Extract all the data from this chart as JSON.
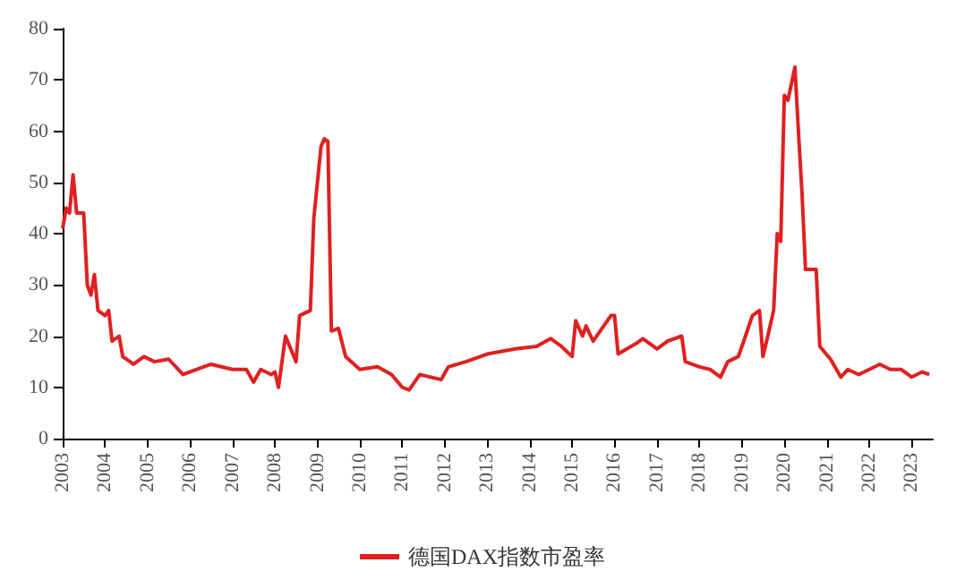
{
  "chart_data": {
    "type": "line",
    "legend": "bottom",
    "grid": false,
    "marker": "none",
    "line_style": "solid",
    "ylim": [
      0,
      80
    ],
    "yticks": [
      0,
      10,
      20,
      30,
      40,
      50,
      60,
      70,
      80
    ],
    "xlim": [
      "2003-01",
      "2023-07"
    ],
    "xticks": [
      "2003",
      "2004",
      "2005",
      "2006",
      "2007",
      "2008",
      "2009",
      "2010",
      "2011",
      "2012",
      "2013",
      "2014",
      "2015",
      "2016",
      "2017",
      "2018",
      "2019",
      "2020",
      "2021",
      "2022",
      "2023"
    ],
    "x": [
      "2003-01",
      "2003-02",
      "2003-03",
      "2003-04",
      "2003-05",
      "2003-07",
      "2003-08",
      "2003-09",
      "2003-10",
      "2003-11",
      "2004-01",
      "2004-02",
      "2004-03",
      "2004-05",
      "2004-06",
      "2004-09",
      "2004-12",
      "2005-03",
      "2005-07",
      "2005-11",
      "2006-03",
      "2006-07",
      "2007-01",
      "2007-05",
      "2007-07",
      "2007-09",
      "2007-12",
      "2008-01",
      "2008-02",
      "2008-04",
      "2008-07",
      "2008-08",
      "2008-11",
      "2008-12",
      "2009-01",
      "2009-02",
      "2009-03",
      "2009-04",
      "2009-05",
      "2009-07",
      "2009-09",
      "2010-01",
      "2010-06",
      "2010-10",
      "2011-01",
      "2011-03",
      "2011-06",
      "2011-12",
      "2012-02",
      "2012-07",
      "2013-01",
      "2013-09",
      "2014-03",
      "2014-07",
      "2014-10",
      "2015-01",
      "2015-02",
      "2015-04",
      "2015-05",
      "2015-07",
      "2015-12",
      "2016-01",
      "2016-02",
      "2016-07",
      "2016-09",
      "2017-01",
      "2017-04",
      "2017-08",
      "2017-09",
      "2018-01",
      "2018-04",
      "2018-07",
      "2018-09",
      "2018-12",
      "2019-02",
      "2019-04",
      "2019-06",
      "2019-07",
      "2019-08",
      "2019-10",
      "2019-11",
      "2019-12",
      "2020-01",
      "2020-02",
      "2020-04",
      "2020-05",
      "2020-06",
      "2020-07",
      "2020-10",
      "2020-11",
      "2021-02",
      "2021-05",
      "2021-07",
      "2021-10",
      "2022-01",
      "2022-04",
      "2022-07",
      "2022-10",
      "2023-01",
      "2023-04",
      "2023-06"
    ],
    "series": [
      {
        "name": "德国DAX指数市盈率",
        "color": "#e02020",
        "values": [
          41,
          45,
          44,
          51.5,
          44,
          44,
          30,
          28,
          32,
          25,
          24,
          25,
          19,
          20,
          16,
          14.5,
          16,
          15,
          15.5,
          12.5,
          13.5,
          14.5,
          13.5,
          13.5,
          11,
          13.5,
          12.5,
          13,
          10,
          20,
          15,
          24,
          25,
          43,
          50,
          57,
          58.5,
          58,
          21,
          21.5,
          16,
          13.5,
          14,
          12.5,
          10,
          9.5,
          12.5,
          11.5,
          14,
          15,
          16.5,
          17.5,
          18,
          19.5,
          18,
          16,
          23,
          20,
          22,
          19,
          24,
          24,
          16.5,
          18.5,
          19.5,
          17.5,
          19,
          20,
          15,
          14,
          13.5,
          12,
          15,
          16,
          20,
          24,
          25,
          16,
          19,
          25,
          40,
          38.5,
          67,
          66,
          72.5,
          60,
          48,
          33,
          33,
          18,
          15.5,
          12,
          13.5,
          12.5,
          13.5,
          14.5,
          13.5,
          13.5,
          12,
          13,
          12.5
        ]
      }
    ]
  }
}
